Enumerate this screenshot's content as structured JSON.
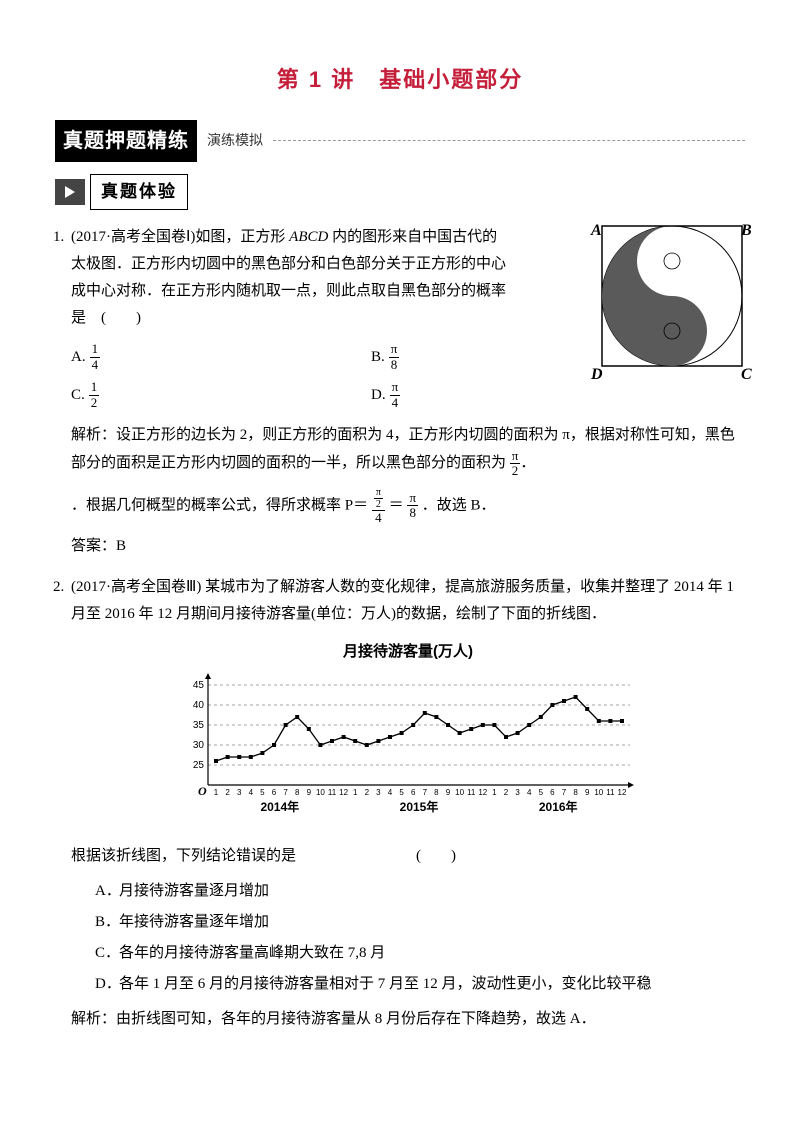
{
  "lecture": {
    "title": "第 1 讲　基础小题部分"
  },
  "section": {
    "title": "真题押题精练",
    "sub": "演练模拟"
  },
  "subsection": {
    "title": "真题体验"
  },
  "q1": {
    "num": "1.",
    "src": "(2017·高考全国卷Ⅰ)如图，正方形 ",
    "abcd": "ABCD",
    "src2": " 内的图形来自中国古代的太极图．正方形内切圆中的黑色部分和白色部分关于正方形的中心成中心对称．在正方形内随机取一点，则此点取自黑色部分的概率是　(　　)",
    "opts": {
      "A": {
        "n": "1",
        "d": "4"
      },
      "B": {
        "n": "π",
        "d": "8"
      },
      "C": {
        "n": "1",
        "d": "2"
      },
      "D": {
        "n": "π",
        "d": "4"
      }
    },
    "solPrefix": "解析：设正方形的边长为 2，则正方形的面积为 4，正方形内切圆的面积为 π，根据对称性可知，黑色部分的面积是正方形内切圆的面积的一半，所以黑色部分的面积为",
    "solMid": "．根据几何概型的概率公式，得所求概率 P＝",
    "solEq": "＝",
    "solEnd": "．故选 B．",
    "answer": "答案：B",
    "taiji": {
      "labels": {
        "A": "A",
        "B": "B",
        "C": "C",
        "D": "D"
      },
      "square_stroke": "#000000",
      "circle_stroke": "#000000",
      "dark_fill": "#5a5a5a",
      "light_fill": "#ffffff"
    }
  },
  "q2": {
    "num": "2.",
    "text": "(2017·高考全国卷Ⅲ) 某城市为了解游客人数的变化规律，提高旅游服务质量，收集并整理了 2014 年 1 月至 2016 年 12 月期间月接待游客量(单位：万人)的数据，绘制了下面的折线图．",
    "chart_title": "月接待游客量(万人)",
    "chart": {
      "ylim": [
        0,
        47
      ],
      "yticks": [
        25,
        30,
        35,
        40,
        45
      ],
      "years": [
        "2014年",
        "2015年",
        "2016年"
      ],
      "xlabels": [
        "1",
        "2",
        "3",
        "4",
        "5",
        "6",
        "7",
        "8",
        "9",
        "10",
        "11",
        "12",
        "1",
        "2",
        "3",
        "4",
        "5",
        "6",
        "7",
        "8",
        "9",
        "10",
        "11",
        "12",
        "1",
        "2",
        "3",
        "4",
        "5",
        "6",
        "7",
        "8",
        "9",
        "10",
        "11",
        "12"
      ],
      "values": [
        26,
        27,
        27,
        27,
        28,
        30,
        35,
        37,
        34,
        30,
        31,
        32,
        31,
        30,
        31,
        32,
        33,
        35,
        38,
        37,
        35,
        33,
        34,
        35,
        35,
        32,
        33,
        35,
        37,
        40,
        41,
        42,
        39,
        36,
        36,
        36
      ],
      "line_color": "#000000",
      "marker": "square",
      "marker_size": 4,
      "grid_color": "#888888",
      "grid_dash": true,
      "bg": "#ffffff",
      "axis_fontsize": 10
    },
    "question_line": "根据该折线图，下列结论错误的是　　　　　　　　(　　)",
    "opts": {
      "A": "月接待游客量逐月增加",
      "B": "年接待游客量逐年增加",
      "C": "各年的月接待游客量高峰期大致在 7,8 月",
      "D": "各年 1 月至 6 月的月接待游客量相对于 7 月至 12 月，波动性更小，变化比较平稳"
    },
    "solution": "解析：由折线图可知，各年的月接待游客量从 8 月份后存在下降趋势，故选 A．"
  }
}
